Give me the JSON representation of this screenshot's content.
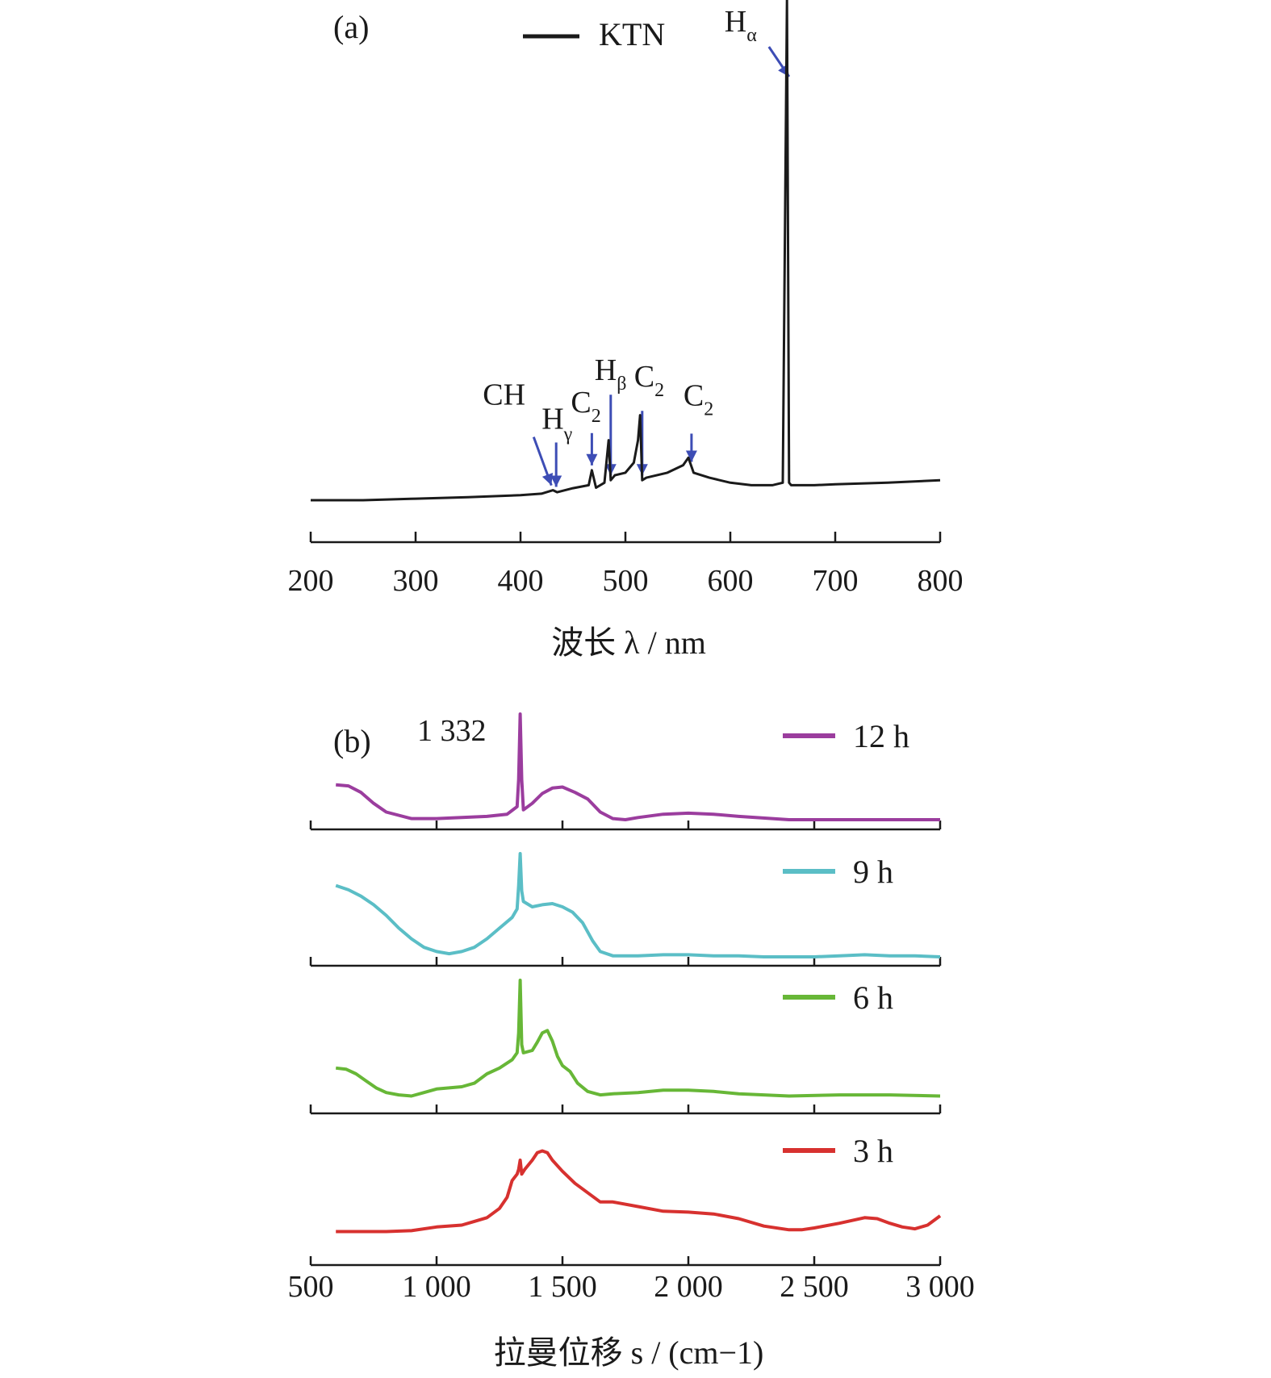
{
  "chart_data": [
    {
      "panel": "(a)",
      "type": "line",
      "xlabel": "波长 λ / nm",
      "xlim": [
        200,
        800
      ],
      "xticks": [
        200,
        300,
        400,
        500,
        600,
        700,
        800
      ],
      "tick_labels": [
        "200",
        "300",
        "400",
        "500",
        "600",
        "700",
        "800"
      ],
      "y_axis_shown": false,
      "ylim": [
        0,
        100
      ],
      "legend": {
        "position": "top-center",
        "entries": [
          {
            "name": "KTN",
            "color": "#1a1a1a"
          }
        ]
      },
      "series": [
        {
          "name": "KTN",
          "color": "#1a1a1a",
          "x": [
            200,
            250,
            300,
            350,
            400,
            420,
            431,
            435,
            450,
            465,
            468,
            472,
            480,
            484,
            486,
            490,
            500,
            508,
            512,
            514,
            516,
            520,
            540,
            555,
            560,
            565,
            580,
            600,
            620,
            640,
            650,
            654,
            656,
            658,
            660,
            680,
            700,
            750,
            800
          ],
          "y": [
            0,
            0,
            0.3,
            0.6,
            1,
            1.3,
            2,
            1.6,
            2.4,
            3,
            6,
            2.5,
            3.5,
            12,
            4,
            5,
            5.5,
            7.5,
            12,
            17,
            4,
            4.5,
            5.5,
            7,
            8.5,
            5.5,
            4.5,
            3.5,
            3,
            3,
            3.5,
            100,
            3.5,
            3,
            3,
            3,
            3.2,
            3.5,
            4
          ]
        }
      ],
      "annotations": [
        {
          "text": "CH",
          "x": 431
        },
        {
          "text": "Hγ",
          "x": 434
        },
        {
          "text": "C2",
          "x": 468
        },
        {
          "text": "Hβ",
          "x": 486
        },
        {
          "text": "C2",
          "x": 516
        },
        {
          "text": "C2",
          "x": 563
        },
        {
          "text": "Hα",
          "x": 656
        }
      ]
    },
    {
      "panel": "(b)",
      "type": "line",
      "xlabel": "拉曼位移 s / (cm−1)",
      "xlim": [
        500,
        3000
      ],
      "xticks": [
        500,
        1000,
        1500,
        2000,
        2500,
        3000
      ],
      "tick_labels": [
        "500",
        "1 000",
        "1 500",
        "2 000",
        "2 500",
        "3 000"
      ],
      "y_axis_shown": false,
      "annotations": [
        {
          "text": "1 332",
          "x": 1332
        }
      ],
      "legend": {
        "position": "right",
        "entries": [
          {
            "name": "12 h",
            "color": "#9b3d9e"
          },
          {
            "name": "9 h",
            "color": "#5bbec6"
          },
          {
            "name": "6 h",
            "color": "#67b737"
          },
          {
            "name": "3 h",
            "color": "#d7312f"
          }
        ]
      },
      "series": [
        {
          "name": "12 h",
          "color": "#9b3d9e",
          "x": [
            600,
            650,
            700,
            750,
            800,
            900,
            1000,
            1100,
            1200,
            1280,
            1320,
            1326,
            1332,
            1338,
            1345,
            1380,
            1420,
            1460,
            1500,
            1550,
            1600,
            1650,
            1700,
            1750,
            1800,
            1900,
            2000,
            2100,
            2200,
            2400,
            2600,
            2800,
            3000
          ],
          "y": [
            35,
            34,
            28,
            18,
            10,
            4,
            4,
            5,
            6,
            8,
            15,
            40,
            100,
            40,
            12,
            18,
            27,
            32,
            33,
            28,
            22,
            10,
            4,
            3,
            5,
            8,
            9,
            8,
            6,
            3,
            3,
            3,
            3
          ]
        },
        {
          "name": "9 h",
          "color": "#5bbec6",
          "x": [
            600,
            650,
            700,
            750,
            800,
            850,
            900,
            950,
            1000,
            1050,
            1100,
            1150,
            1200,
            1250,
            1300,
            1320,
            1326,
            1332,
            1338,
            1345,
            1380,
            1420,
            1460,
            1500,
            1540,
            1580,
            1620,
            1650,
            1700,
            1800,
            1900,
            2000,
            2100,
            2200,
            2300,
            2400,
            2500,
            2600,
            2700,
            2800,
            2900,
            3000
          ],
          "y": [
            70,
            66,
            60,
            52,
            42,
            30,
            20,
            12,
            8,
            6,
            8,
            12,
            20,
            30,
            40,
            48,
            70,
            100,
            65,
            55,
            50,
            52,
            53,
            50,
            45,
            35,
            18,
            8,
            4,
            4,
            5,
            5,
            4,
            4,
            3,
            3,
            3,
            4,
            5,
            4,
            4,
            3
          ]
        },
        {
          "name": "6 h",
          "color": "#67b737",
          "x": [
            600,
            640,
            680,
            720,
            760,
            800,
            850,
            900,
            950,
            1000,
            1050,
            1100,
            1150,
            1200,
            1250,
            1300,
            1320,
            1326,
            1332,
            1338,
            1345,
            1380,
            1400,
            1420,
            1440,
            1460,
            1480,
            1500,
            1530,
            1560,
            1600,
            1650,
            1700,
            1800,
            1900,
            2000,
            2100,
            2200,
            2300,
            2400,
            2600,
            2800,
            3000
          ],
          "y": [
            25,
            24,
            20,
            14,
            8,
            4,
            2,
            1,
            4,
            7,
            8,
            9,
            12,
            20,
            25,
            32,
            38,
            55,
            100,
            45,
            38,
            40,
            47,
            55,
            57,
            48,
            35,
            27,
            22,
            12,
            5,
            2,
            3,
            4,
            6,
            6,
            5,
            3,
            2,
            1,
            2,
            2,
            1
          ]
        },
        {
          "name": "3 h",
          "color": "#d7312f",
          "x": [
            600,
            700,
            800,
            900,
            1000,
            1100,
            1150,
            1200,
            1250,
            1280,
            1300,
            1320,
            1326,
            1332,
            1338,
            1350,
            1380,
            1400,
            1420,
            1440,
            1460,
            1500,
            1550,
            1600,
            1650,
            1700,
            1800,
            1900,
            2000,
            2100,
            2200,
            2300,
            2400,
            2450,
            2500,
            2600,
            2700,
            2750,
            2800,
            2850,
            2900,
            2950,
            3000
          ],
          "y": [
            3,
            3,
            3,
            4,
            8,
            10,
            14,
            18,
            28,
            40,
            58,
            65,
            70,
            80,
            65,
            70,
            80,
            88,
            90,
            88,
            80,
            68,
            55,
            45,
            35,
            35,
            30,
            25,
            24,
            22,
            17,
            9,
            5,
            5,
            7,
            12,
            18,
            17,
            12,
            8,
            6,
            10,
            20
          ]
        }
      ]
    }
  ]
}
